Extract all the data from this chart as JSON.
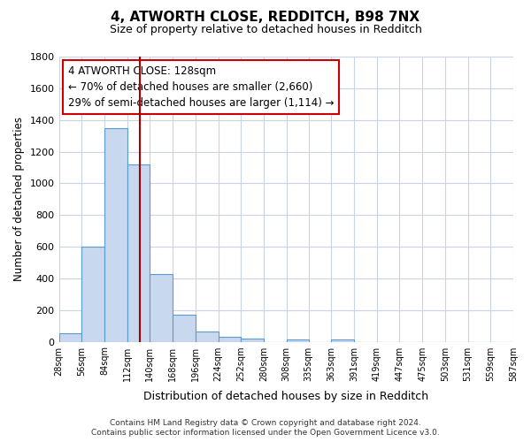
{
  "title_line1": "4, ATWORTH CLOSE, REDDITCH, B98 7NX",
  "title_line2": "Size of property relative to detached houses in Redditch",
  "xlabel": "Distribution of detached houses by size in Redditch",
  "ylabel": "Number of detached properties",
  "bin_left_edges": [
    28,
    56,
    84,
    112,
    140,
    168,
    196,
    224,
    252,
    280,
    308,
    335,
    363,
    391,
    419,
    447,
    475,
    503,
    531,
    559
  ],
  "bin_widths": [
    28,
    28,
    28,
    28,
    28,
    28,
    28,
    28,
    28,
    28,
    27,
    28,
    28,
    28,
    28,
    28,
    28,
    28,
    28,
    28
  ],
  "bin_labels": [
    "28sqm",
    "56sqm",
    "84sqm",
    "112sqm",
    "140sqm",
    "168sqm",
    "196sqm",
    "224sqm",
    "252sqm",
    "280sqm",
    "308sqm",
    "335sqm",
    "363sqm",
    "391sqm",
    "419sqm",
    "447sqm",
    "475sqm",
    "503sqm",
    "531sqm",
    "559sqm",
    "587sqm"
  ],
  "bar_heights": [
    55,
    600,
    1350,
    1120,
    425,
    170,
    65,
    32,
    20,
    0,
    15,
    0,
    15,
    0,
    0,
    0,
    0,
    0,
    0,
    0
  ],
  "bar_color": "#c8d8ee",
  "bar_edge_color": "#5b9bd5",
  "vline_x": 128,
  "vline_color": "#aa0000",
  "ylim": [
    0,
    1800
  ],
  "yticks": [
    0,
    200,
    400,
    600,
    800,
    1000,
    1200,
    1400,
    1600,
    1800
  ],
  "annotation_title": "4 ATWORTH CLOSE: 128sqm",
  "annotation_line2": "← 70% of detached houses are smaller (2,660)",
  "annotation_line3": "29% of semi-detached houses are larger (1,114) →",
  "footer_line1": "Contains HM Land Registry data © Crown copyright and database right 2024.",
  "footer_line2": "Contains public sector information licensed under the Open Government Licence v3.0.",
  "background_color": "#ffffff",
  "grid_color": "#c8d4e4"
}
